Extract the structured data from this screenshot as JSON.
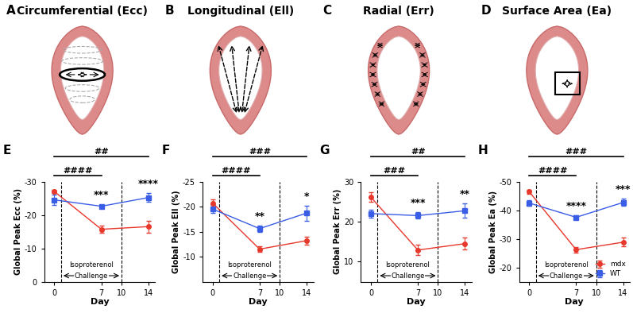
{
  "diagrams": [
    {
      "label": "A",
      "title": "Circumferential (Ecc)",
      "kind": "circumferential"
    },
    {
      "label": "B",
      "title": "Longitudinal (Ell)",
      "kind": "longitudinal"
    },
    {
      "label": "C",
      "title": "Radial (Err)",
      "kind": "radial"
    },
    {
      "label": "D",
      "title": "Surface Area (Ea)",
      "kind": "area"
    }
  ],
  "chart_data": [
    {
      "label": "E",
      "type": "line",
      "x": [
        0,
        7,
        14
      ],
      "xlim": [
        -1.5,
        15
      ],
      "xticks": [
        0,
        7,
        10,
        14
      ],
      "x_label": "Day",
      "y_label": "Global Peak Ecc (%)",
      "ylim": [
        0,
        -30
      ],
      "yticks": [
        -30,
        -20,
        -10,
        0
      ],
      "series": [
        {
          "name": "mdx",
          "color": "#e8372b",
          "marker": "circle",
          "values": [
            -27,
            -15.7,
            -16.5
          ],
          "errors": [
            0.5,
            1.0,
            1.8
          ]
        },
        {
          "name": "WT",
          "color": "#3a5de6",
          "marker": "square",
          "values": [
            -24.5,
            -22.6,
            -25.2
          ],
          "errors": [
            1.5,
            0.5,
            1.3
          ]
        }
      ],
      "challenge": {
        "label": "Isoproterenol Challenge",
        "start": 1,
        "end": 10
      },
      "comparisons": [
        {
          "label": "####",
          "from": 0,
          "to": 7
        },
        {
          "label": "##",
          "from": 0,
          "to": 14
        }
      ],
      "stars": [
        {
          "x": 7,
          "label": "***"
        },
        {
          "x": 14,
          "label": "****"
        }
      ]
    },
    {
      "label": "F",
      "type": "line",
      "x": [
        0,
        7,
        14
      ],
      "xlim": [
        -1.5,
        15
      ],
      "xticks": [
        0,
        7,
        10,
        14
      ],
      "x_label": "Day",
      "y_label": "Global Peak Ell (%)",
      "ylim": [
        -5,
        -25
      ],
      "yticks": [
        -25,
        -20,
        -15,
        -10
      ],
      "series": [
        {
          "name": "mdx",
          "color": "#e8372b",
          "marker": "circle",
          "values": [
            -20.7,
            -11.5,
            -13.2
          ],
          "errors": [
            0.7,
            0.6,
            0.8
          ]
        },
        {
          "name": "WT",
          "color": "#3a5de6",
          "marker": "square",
          "values": [
            -19.5,
            -15.6,
            -18.7
          ],
          "errors": [
            0.8,
            0.6,
            1.5
          ]
        }
      ],
      "challenge": {
        "label": "Isoproterenol Challenge",
        "start": 1,
        "end": 10
      },
      "comparisons": [
        {
          "label": "####",
          "from": 0,
          "to": 7
        },
        {
          "label": "###",
          "from": 0,
          "to": 14
        }
      ],
      "stars": [
        {
          "x": 7,
          "label": "**"
        },
        {
          "x": 14,
          "label": "*"
        }
      ]
    },
    {
      "label": "G",
      "type": "line",
      "x": [
        0,
        7,
        14
      ],
      "xlim": [
        -1.5,
        15
      ],
      "xticks": [
        0,
        7,
        10,
        14
      ],
      "x_label": "Day",
      "y_label": "Global Peak Err (%)",
      "ylim": [
        5,
        30
      ],
      "yticks": [
        10,
        20,
        30
      ],
      "series": [
        {
          "name": "mdx",
          "color": "#e8372b",
          "marker": "circle",
          "values": [
            26.1,
            12.9,
            14.5
          ],
          "errors": [
            1.2,
            1.3,
            1.5
          ]
        },
        {
          "name": "WT",
          "color": "#3a5de6",
          "marker": "square",
          "values": [
            22,
            21.5,
            22.7
          ],
          "errors": [
            1.0,
            0.8,
            1.8
          ]
        }
      ],
      "challenge": {
        "label": "Isoproterenol Challenge",
        "start": 1,
        "end": 10
      },
      "comparisons": [
        {
          "label": "###",
          "from": 0,
          "to": 7
        },
        {
          "label": "##",
          "from": 0,
          "to": 14
        }
      ],
      "stars": [
        {
          "x": 7,
          "label": "***"
        },
        {
          "x": 14,
          "label": "**"
        }
      ]
    },
    {
      "label": "H",
      "type": "line",
      "x": [
        0,
        7,
        14
      ],
      "xlim": [
        -1.5,
        15
      ],
      "xticks": [
        0,
        7,
        10,
        14
      ],
      "x_label": "Day",
      "y_label": "Global Peak Ea (%)",
      "ylim": [
        -15,
        -50
      ],
      "yticks": [
        -50,
        -40,
        -30,
        -20
      ],
      "series": [
        {
          "name": "mdx",
          "color": "#e8372b",
          "marker": "circle",
          "values": [
            -46.5,
            -26.2,
            -28.8
          ],
          "errors": [
            0.7,
            1.0,
            1.5
          ]
        },
        {
          "name": "WT",
          "color": "#3a5de6",
          "marker": "square",
          "values": [
            -42.5,
            -37.5,
            -42.7
          ],
          "errors": [
            1.0,
            0.7,
            1.2
          ]
        }
      ],
      "challenge": {
        "label": "Isoproterenol Challenge",
        "start": 1,
        "end": 10
      },
      "comparisons": [
        {
          "label": "####",
          "from": 0,
          "to": 7
        },
        {
          "label": "###",
          "from": 0,
          "to": 14
        }
      ],
      "stars": [
        {
          "x": 7,
          "label": "****"
        },
        {
          "x": 14,
          "label": "***"
        }
      ],
      "legend": "lower right"
    }
  ]
}
